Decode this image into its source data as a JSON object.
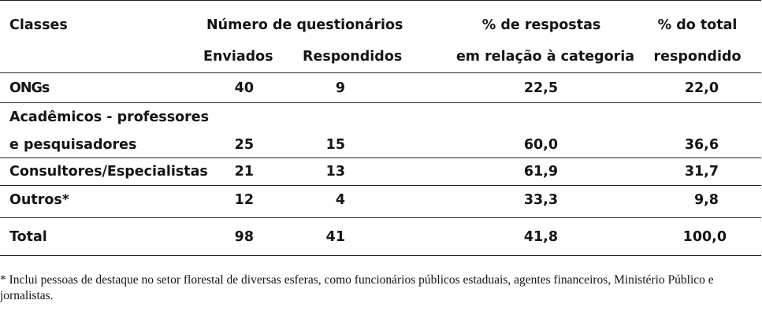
{
  "table": {
    "headers": {
      "classes": "Classes",
      "numero": "Número de questionários",
      "enviados": "Enviados",
      "respondidos": "Respondidos",
      "pct_cat_line1": "% de respostas",
      "pct_cat_line2": "em relação à categoria",
      "pct_total_line1": "% do total",
      "pct_total_line2": "respondido"
    },
    "rows": [
      {
        "label": "ONGs",
        "enviados": "40",
        "respondidos": "9",
        "pct_cat": "22,5",
        "pct_total": "22,0"
      },
      {
        "label_line1": "Acadêmicos - professores",
        "label_line2": "e pesquisadores",
        "enviados": "25",
        "respondidos": "15",
        "pct_cat": "60,0",
        "pct_total": "36,6"
      },
      {
        "label": "Consultores/Especialistas",
        "enviados": "21",
        "respondidos": "13",
        "pct_cat": "61,9",
        "pct_total": "31,7"
      },
      {
        "label": "Outros*",
        "enviados": "12",
        "respondidos": "4",
        "pct_cat": "33,3",
        "pct_total": "9,8"
      }
    ],
    "total": {
      "label": "Total",
      "enviados": "98",
      "respondidos": "41",
      "pct_cat": "41,8",
      "pct_total": "100,0"
    }
  },
  "footnote": "* Inclui pessoas de destaque no setor florestal de diversas esferas, como funcionários públicos estaduais, agentes financeiros, Ministério Público e jornalistas."
}
